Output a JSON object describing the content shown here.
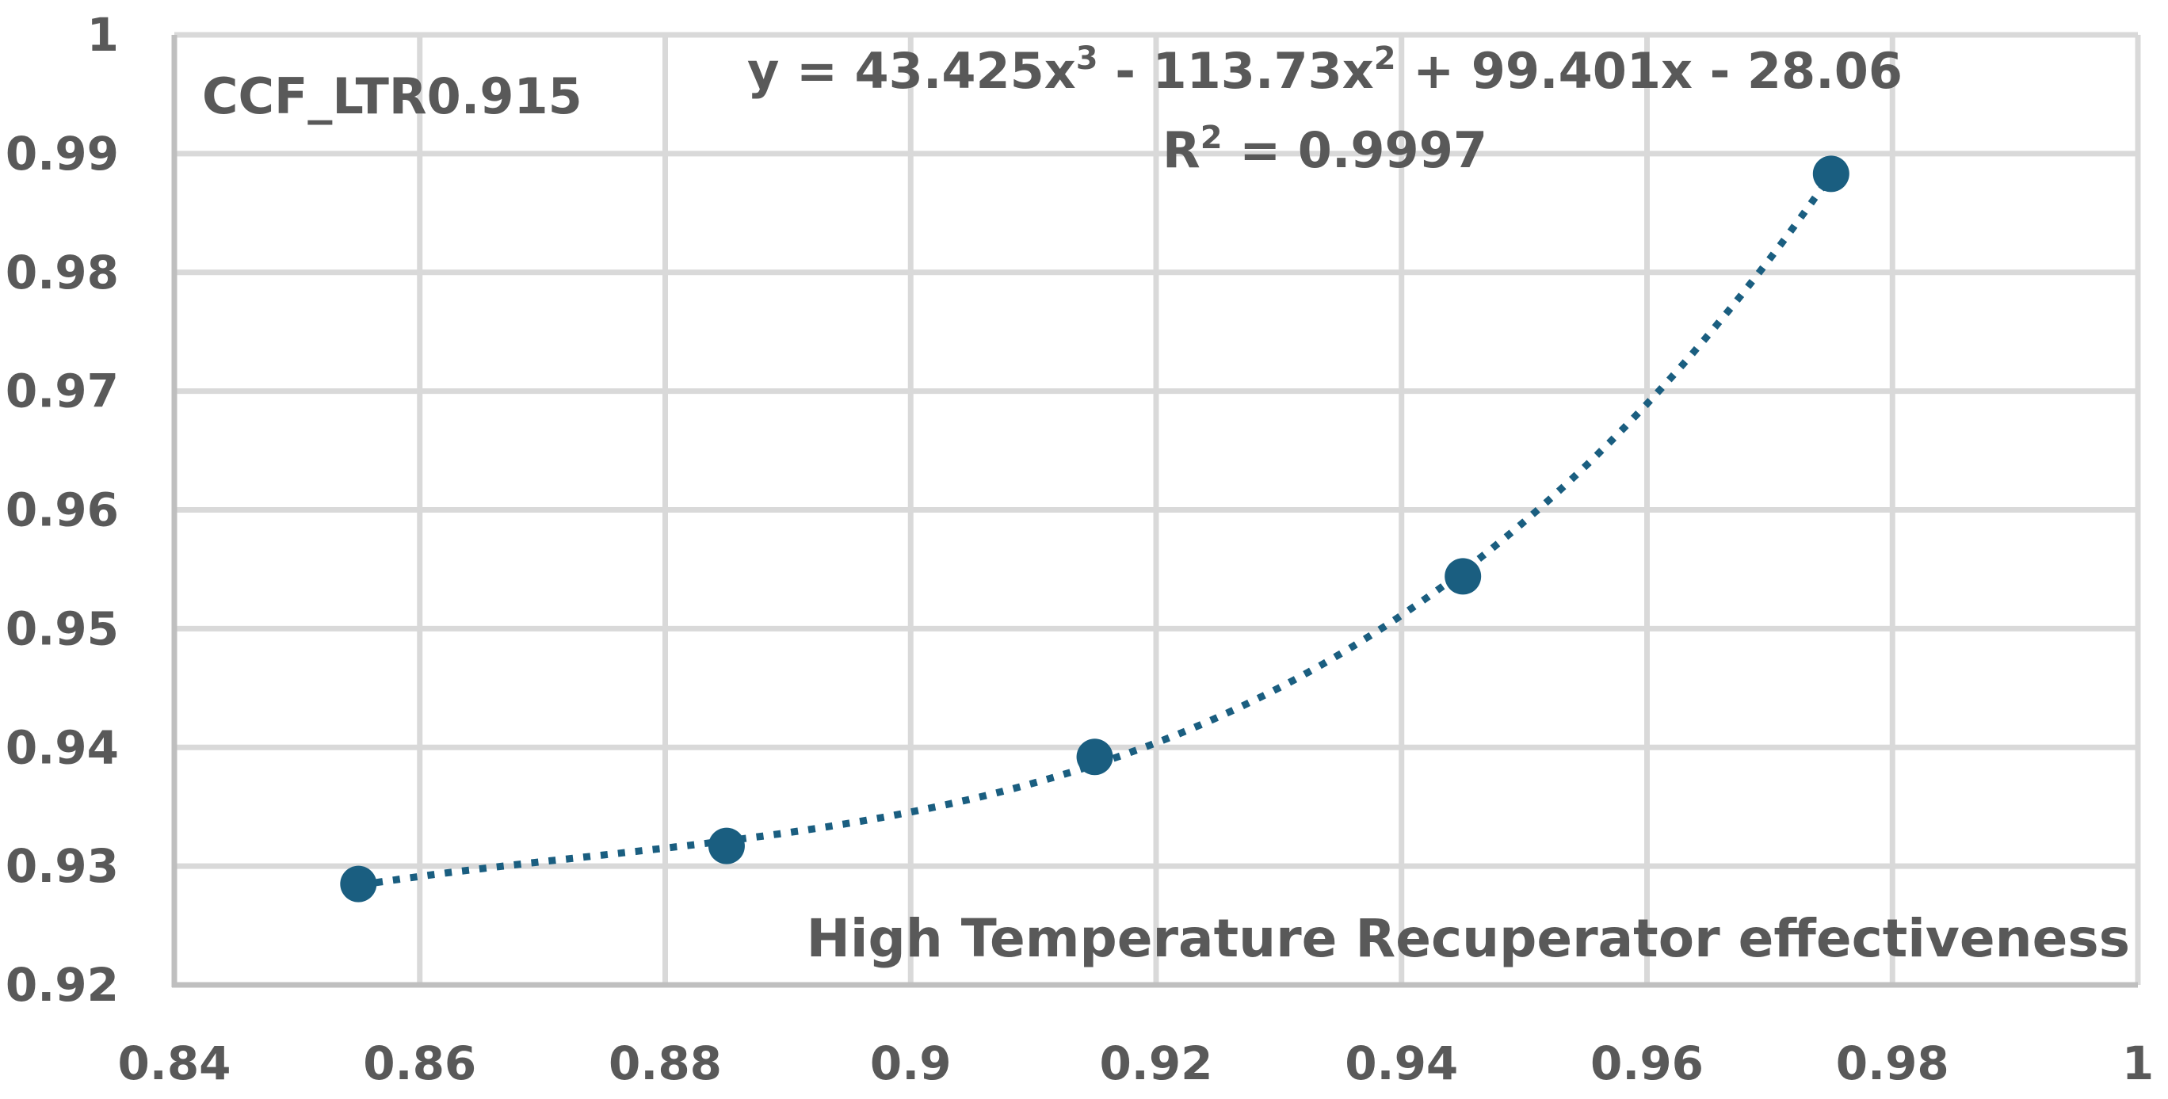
{
  "chart_data": {
    "type": "scatter",
    "title": "",
    "annotation": "CCF_LTR0.915",
    "xlabel": "High Temperature Recuperator effectiveness",
    "ylabel": "",
    "xlim": [
      0.84,
      1.0
    ],
    "ylim": [
      0.92,
      1.0
    ],
    "x_ticks": [
      "0.84",
      "0.86",
      "0.88",
      "0.9",
      "0.92",
      "0.94",
      "0.96",
      "0.98",
      "1"
    ],
    "y_ticks": [
      "0.92",
      "0.93",
      "0.94",
      "0.95",
      "0.96",
      "0.97",
      "0.98",
      "0.99",
      "1"
    ],
    "grid": true,
    "legend": "none",
    "series": [
      {
        "name": "CCF_LTR0.915",
        "color": "#1a5e80",
        "x": [
          0.855,
          0.885,
          0.915,
          0.945,
          0.975
        ],
        "y": [
          0.9285,
          0.9317,
          0.9392,
          0.9544,
          0.9883
        ]
      }
    ],
    "trendline": {
      "type": "polynomial",
      "order": 3,
      "style": "dotted",
      "color": "#1a5e80",
      "equation": "y = 43.425x³ - 113.73x² + 99.401x - 28.06",
      "equation_parts": {
        "lead": "y = 43.425x",
        "sup1": "3",
        "mid": " - 113.73x",
        "sup2": "2",
        "tail": " + 99.401x - 28.06"
      },
      "coefficients": [
        43.425,
        -113.73,
        99.401,
        -28.06
      ],
      "r_squared_label": "R",
      "r_squared_sup": "2",
      "r_squared_value": " = 0.9997"
    }
  },
  "colors": {
    "gridline": "#d9d9d9",
    "axis": "#bfbfbf",
    "text": "#595959",
    "marker": "#1a5e80"
  }
}
